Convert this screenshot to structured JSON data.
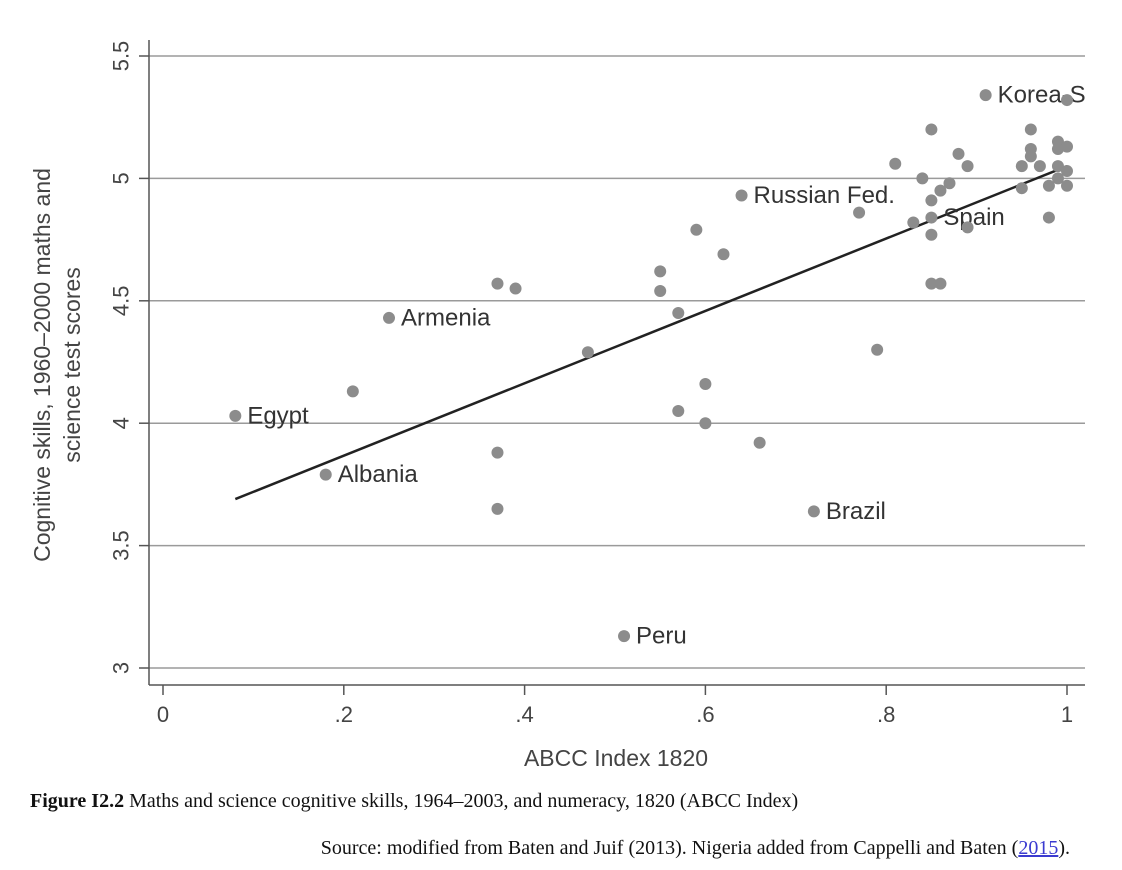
{
  "chart_data": {
    "type": "scatter",
    "xlabel": "ABCC Index 1820",
    "ylabel_lines": [
      "Cognitive skills, 1960–2000 maths and",
      "science test scores"
    ],
    "xlim": [
      0,
      1
    ],
    "ylim": [
      3,
      5.5
    ],
    "x_ticks": [
      0,
      0.2,
      0.4,
      0.6,
      0.8,
      1
    ],
    "x_tick_labels": [
      "0",
      ".2",
      ".4",
      ".6",
      ".8",
      "1"
    ],
    "y_ticks": [
      3,
      3.5,
      4,
      4.5,
      5,
      5.5
    ],
    "y_tick_labels": [
      "3",
      "3.5",
      "4",
      "4.5",
      "5",
      "5.5"
    ],
    "grid": "horizontal",
    "marker_color": "#8c8c8c",
    "fit_line": {
      "x": [
        0.08,
        1.0
      ],
      "y": [
        3.69,
        5.05
      ],
      "color": "#222222"
    },
    "points": [
      {
        "x": 0.08,
        "y": 4.03,
        "label": "Egypt"
      },
      {
        "x": 0.18,
        "y": 3.79,
        "label": "Albania"
      },
      {
        "x": 0.21,
        "y": 4.13
      },
      {
        "x": 0.25,
        "y": 4.43,
        "label": "Armenia"
      },
      {
        "x": 0.37,
        "y": 4.57
      },
      {
        "x": 0.39,
        "y": 4.55
      },
      {
        "x": 0.37,
        "y": 3.88
      },
      {
        "x": 0.37,
        "y": 3.65
      },
      {
        "x": 0.47,
        "y": 4.29
      },
      {
        "x": 0.51,
        "y": 3.13,
        "label": "Peru"
      },
      {
        "x": 0.55,
        "y": 4.62
      },
      {
        "x": 0.55,
        "y": 4.54
      },
      {
        "x": 0.57,
        "y": 4.45
      },
      {
        "x": 0.57,
        "y": 4.05
      },
      {
        "x": 0.59,
        "y": 4.79
      },
      {
        "x": 0.6,
        "y": 4.16
      },
      {
        "x": 0.6,
        "y": 4.0
      },
      {
        "x": 0.62,
        "y": 4.69
      },
      {
        "x": 0.64,
        "y": 4.93,
        "label": "Russian Fed."
      },
      {
        "x": 0.66,
        "y": 3.92
      },
      {
        "x": 0.72,
        "y": 3.64,
        "label": "Brazil"
      },
      {
        "x": 0.77,
        "y": 4.86
      },
      {
        "x": 0.79,
        "y": 4.3
      },
      {
        "x": 0.81,
        "y": 5.06
      },
      {
        "x": 0.83,
        "y": 4.82
      },
      {
        "x": 0.84,
        "y": 5.0
      },
      {
        "x": 0.85,
        "y": 5.2
      },
      {
        "x": 0.85,
        "y": 4.91
      },
      {
        "x": 0.85,
        "y": 4.77
      },
      {
        "x": 0.85,
        "y": 4.57
      },
      {
        "x": 0.85,
        "y": 4.84,
        "label": "Spain"
      },
      {
        "x": 0.86,
        "y": 4.95
      },
      {
        "x": 0.86,
        "y": 4.57
      },
      {
        "x": 0.87,
        "y": 4.98
      },
      {
        "x": 0.88,
        "y": 5.1
      },
      {
        "x": 0.89,
        "y": 5.05
      },
      {
        "x": 0.89,
        "y": 4.8
      },
      {
        "x": 0.91,
        "y": 5.34,
        "label": "Korea-S"
      },
      {
        "x": 0.95,
        "y": 5.05
      },
      {
        "x": 0.95,
        "y": 4.96
      },
      {
        "x": 0.96,
        "y": 5.2
      },
      {
        "x": 0.96,
        "y": 5.12
      },
      {
        "x": 0.96,
        "y": 5.09
      },
      {
        "x": 0.97,
        "y": 5.05
      },
      {
        "x": 0.98,
        "y": 4.97
      },
      {
        "x": 0.98,
        "y": 4.84
      },
      {
        "x": 0.99,
        "y": 5.15
      },
      {
        "x": 0.99,
        "y": 5.12
      },
      {
        "x": 0.99,
        "y": 5.05
      },
      {
        "x": 0.99,
        "y": 5.0
      },
      {
        "x": 1.0,
        "y": 5.32
      },
      {
        "x": 1.0,
        "y": 5.13
      },
      {
        "x": 1.0,
        "y": 5.03
      },
      {
        "x": 1.0,
        "y": 4.97
      }
    ]
  },
  "caption": {
    "label": "Figure I2.2",
    "text": " Maths and science cognitive skills, 1964–2003, and numeracy, 1820 (ABCC Index)"
  },
  "source": {
    "prefix": "Source: modified from Baten and Juif (2013). Nigeria added from Cappelli and Baten (",
    "link": "2015",
    "suffix": ")."
  }
}
